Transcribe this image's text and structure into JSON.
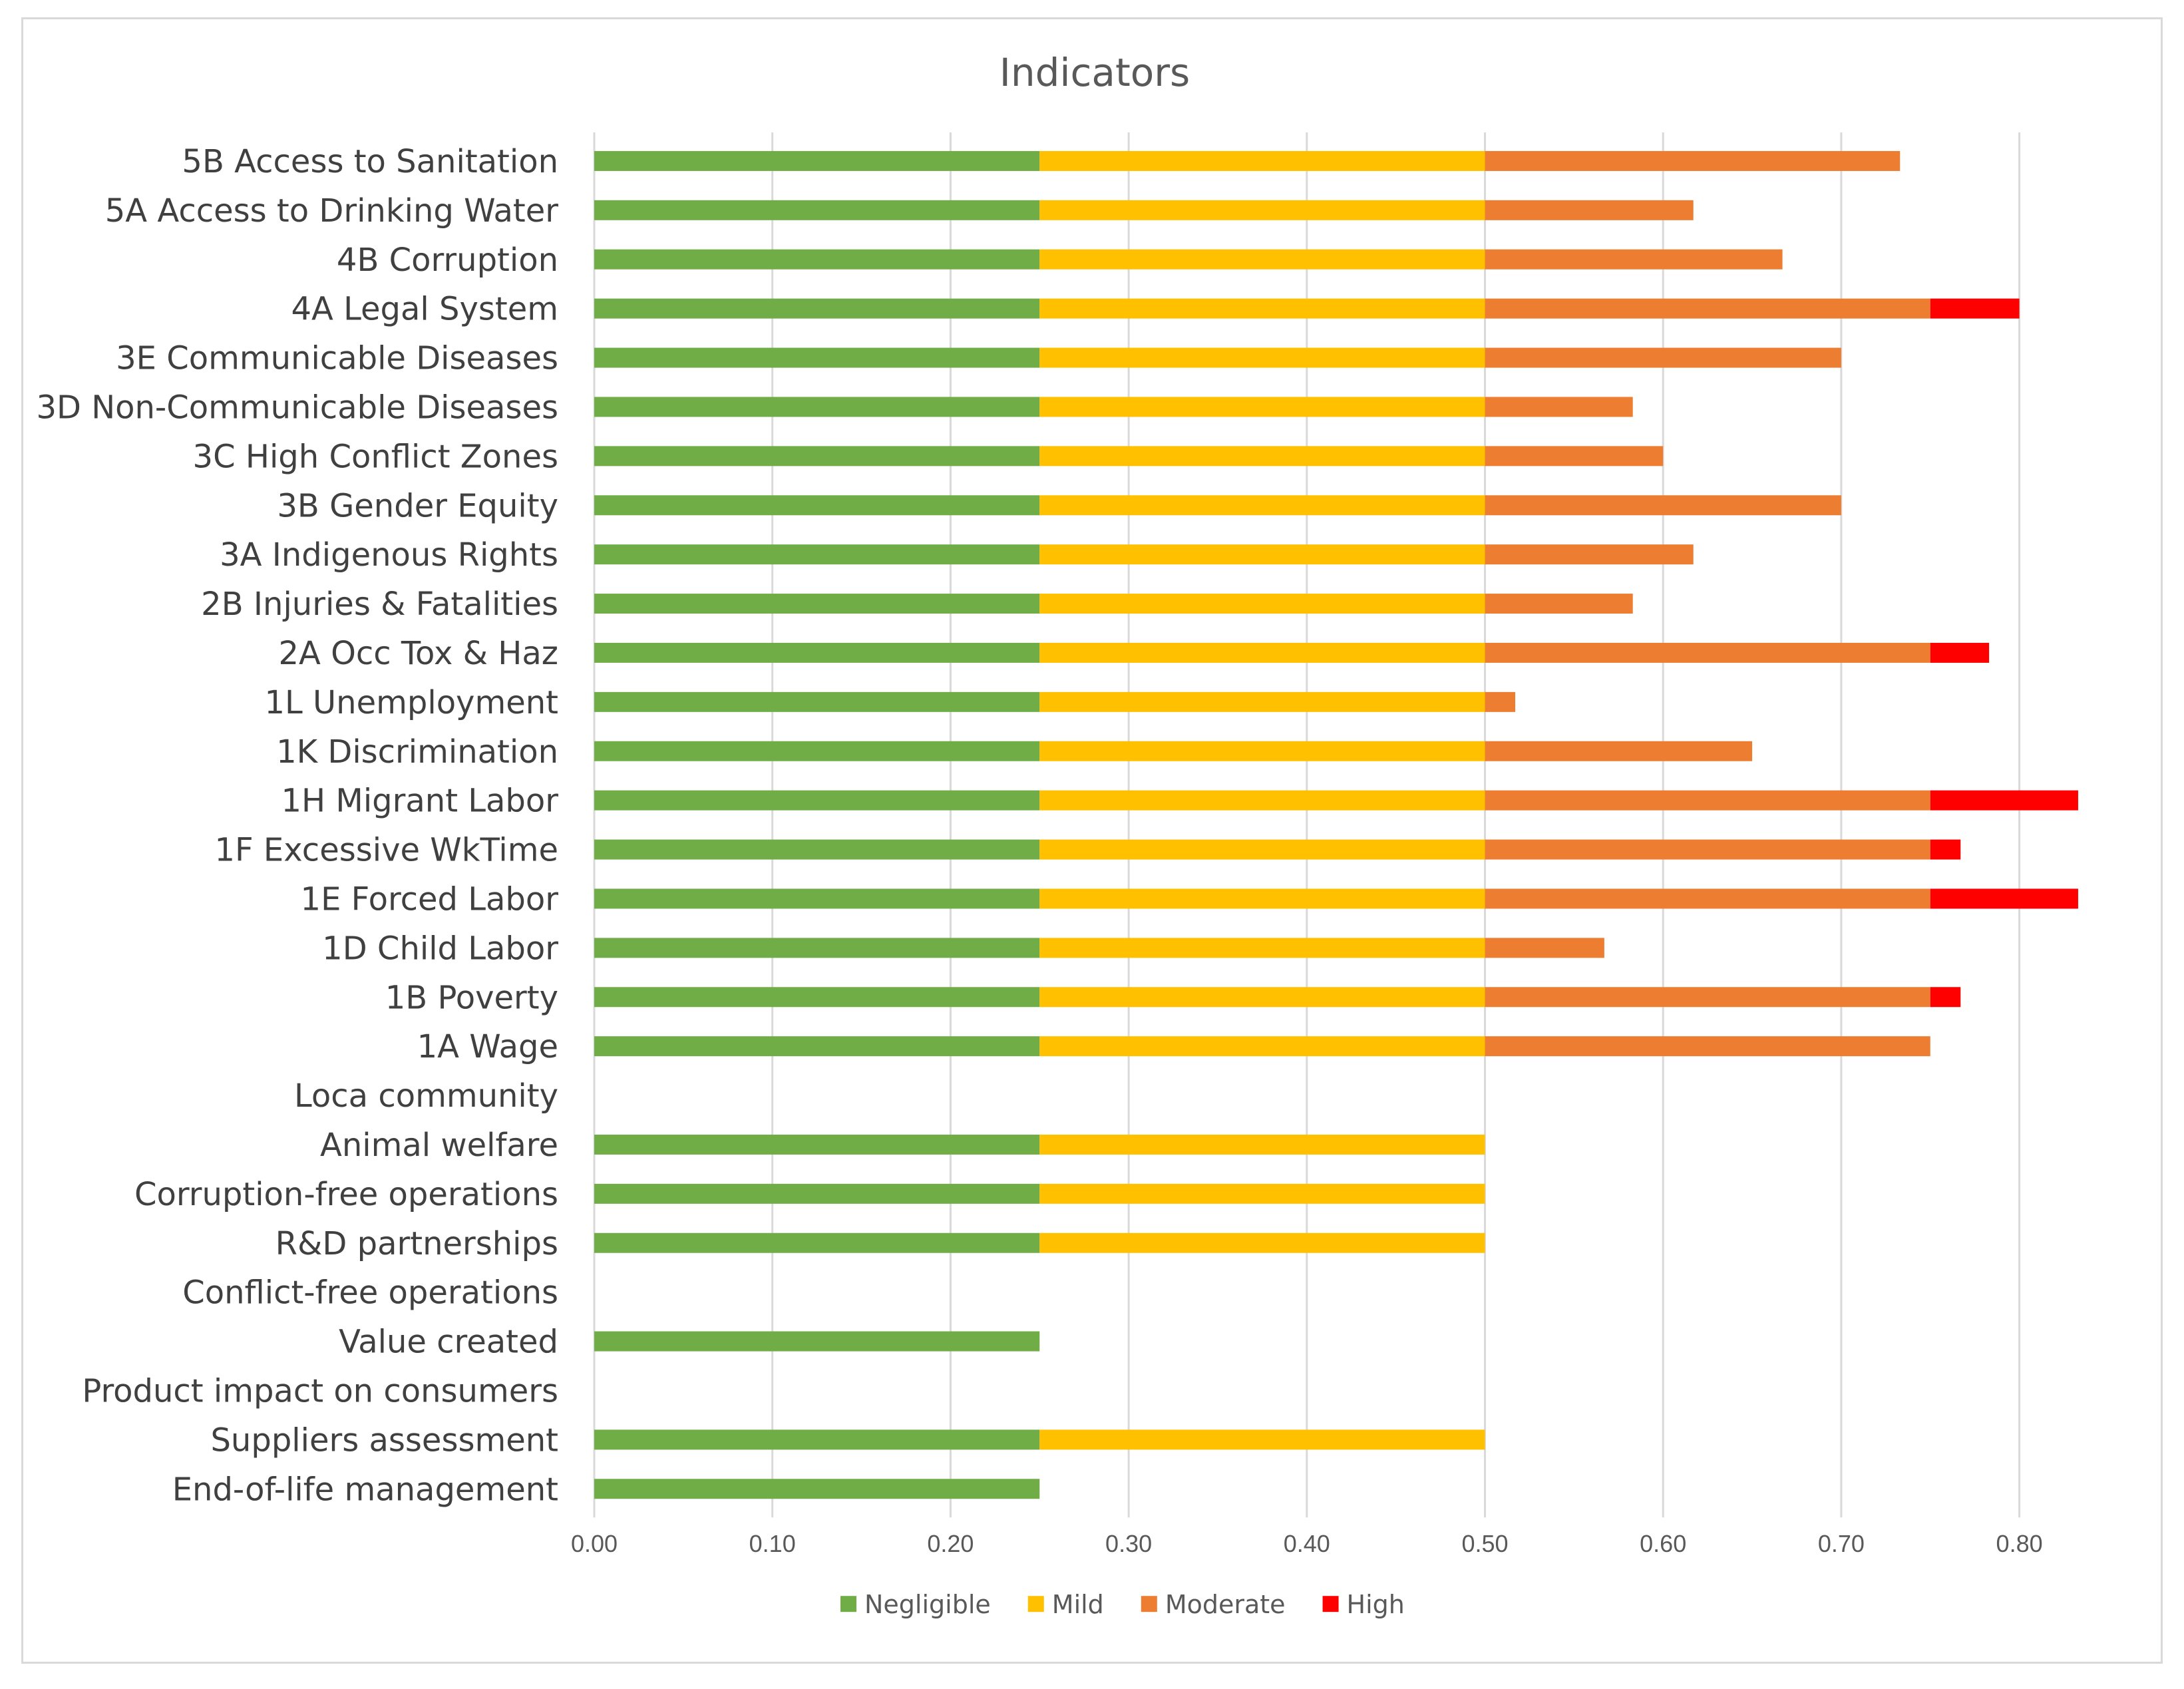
{
  "chart_data": {
    "type": "bar",
    "orientation": "horizontal",
    "stacked": true,
    "title": "Indicators",
    "xlabel": "",
    "ylabel": "",
    "xlim": [
      0,
      0.85
    ],
    "ticks": [
      0,
      0.1,
      0.2,
      0.3,
      0.4,
      0.5,
      0.6,
      0.7,
      0.8
    ],
    "tick_labels": [
      "0.00",
      "0.10",
      "0.20",
      "0.30",
      "0.40",
      "0.50",
      "0.60",
      "0.70",
      "0.80"
    ],
    "grid": true,
    "legend_position": "bottom",
    "categories": [
      "5B Access to Sanitation",
      "5A Access to Drinking Water",
      "4B Corruption",
      "4A Legal System",
      "3E Communicable Diseases",
      "3D Non-Communicable Diseases",
      "3C High Conflict Zones",
      "3B Gender Equity",
      "3A Indigenous Rights",
      "2B Injuries & Fatalities",
      "2A Occ Tox & Haz",
      "1L Unemployment",
      "1K Discrimination",
      "1H Migrant Labor",
      "1F Excessive WkTime",
      "1E Forced Labor",
      "1D Child Labor",
      "1B Poverty",
      "1A Wage",
      "Loca community",
      "Animal welfare",
      "Corruption-free operations",
      "R&D partnerships",
      "Conflict-free operations",
      "Value created",
      "Product impact on consumers",
      "Suppliers assessment",
      "End-of-life management"
    ],
    "series": [
      {
        "name": "Negligible",
        "color": "#70ad47",
        "values": [
          0.25,
          0.25,
          0.25,
          0.25,
          0.25,
          0.25,
          0.25,
          0.25,
          0.25,
          0.25,
          0.25,
          0.25,
          0.25,
          0.25,
          0.25,
          0.25,
          0.25,
          0.25,
          0.25,
          0,
          0.25,
          0.25,
          0.25,
          0,
          0.25,
          0,
          0.25,
          0.25
        ]
      },
      {
        "name": "Mild",
        "color": "#ffc000",
        "values": [
          0.25,
          0.25,
          0.25,
          0.25,
          0.25,
          0.25,
          0.25,
          0.25,
          0.25,
          0.25,
          0.25,
          0.25,
          0.25,
          0.25,
          0.25,
          0.25,
          0.25,
          0.25,
          0.25,
          0,
          0.25,
          0.25,
          0.25,
          0,
          0,
          0,
          0.25,
          0
        ]
      },
      {
        "name": "Moderate",
        "color": "#ed7d31",
        "values": [
          0.233,
          0.117,
          0.167,
          0.25,
          0.2,
          0.083,
          0.1,
          0.2,
          0.117,
          0.083,
          0.25,
          0.017,
          0.15,
          0.25,
          0.25,
          0.25,
          0.067,
          0.25,
          0.25,
          0,
          0,
          0,
          0,
          0,
          0,
          0,
          0,
          0
        ]
      },
      {
        "name": "High",
        "color": "#ff0000",
        "values": [
          0,
          0,
          0,
          0.05,
          0,
          0,
          0,
          0,
          0,
          0,
          0.033,
          0,
          0,
          0.083,
          0.017,
          0.083,
          0,
          0.017,
          0,
          0,
          0,
          0,
          0,
          0,
          0,
          0,
          0,
          0
        ]
      }
    ]
  }
}
